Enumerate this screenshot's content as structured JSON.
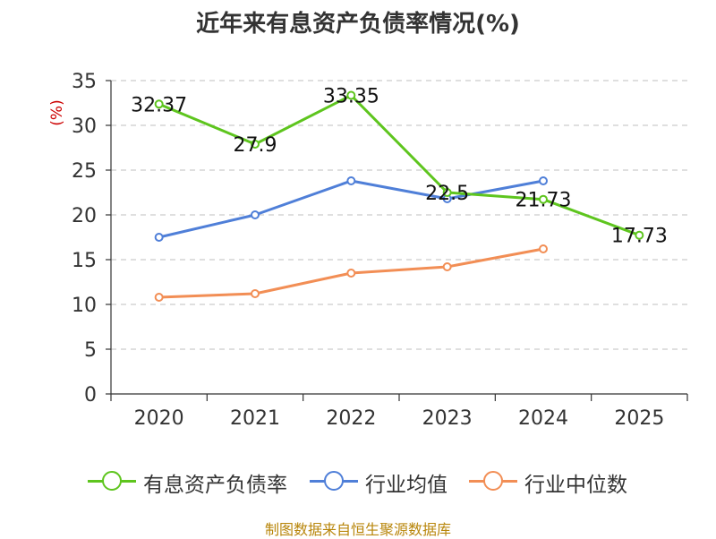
{
  "title": "近年来有息资产负债率情况(%)",
  "source": "制图数据来自恒生聚源数据库",
  "colors": {
    "green": "#5ec51e",
    "blue": "#4f7fd8",
    "orange": "#f28e55",
    "unit": "#cc0000",
    "axis": "#333333",
    "grid": "#cccccc"
  },
  "chart_data": {
    "type": "line",
    "title": "近年来有息资产负债率情况(%)",
    "ylabel": "(%)",
    "categories": [
      "2020",
      "2021",
      "2022",
      "2023",
      "2024",
      "2025"
    ],
    "ylim": [
      0,
      35
    ],
    "yticks": [
      0,
      5,
      10,
      15,
      20,
      25,
      30,
      35
    ],
    "grid": true,
    "legend_position": "bottom",
    "series": [
      {
        "name": "有息资产负债率",
        "color": "#5ec51e",
        "values": [
          32.37,
          27.9,
          33.35,
          22.5,
          21.73,
          17.73
        ],
        "labels": [
          "32.37",
          "27.9",
          "33.35",
          "22.5",
          "21.73",
          "17.73"
        ]
      },
      {
        "name": "行业均值",
        "color": "#4f7fd8",
        "values": [
          17.5,
          20.0,
          23.8,
          21.8,
          23.8,
          null
        ]
      },
      {
        "name": "行业中位数",
        "color": "#f28e55",
        "values": [
          10.8,
          11.2,
          13.5,
          14.2,
          16.2,
          null
        ]
      }
    ]
  }
}
